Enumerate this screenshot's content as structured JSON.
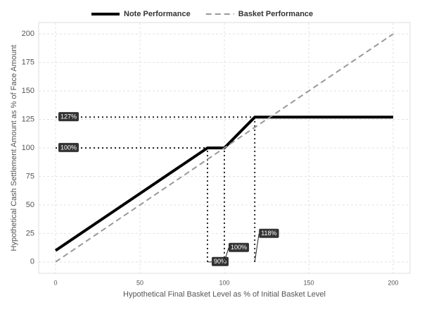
{
  "chart_data": {
    "type": "line",
    "xlabel": "Hypothetical Final Basket Level as % of Initial Basket Level",
    "ylabel": "Hypothetical Cash Settlement Amount as % of Face Amount",
    "xlim": [
      -10,
      210
    ],
    "ylim": [
      -10,
      210
    ],
    "xticks": [
      0,
      50,
      100,
      150,
      200
    ],
    "yticks": [
      0,
      25,
      50,
      75,
      100,
      125,
      150,
      175,
      200
    ],
    "grid": true,
    "legend": "top",
    "series": [
      {
        "name": "Note Performance",
        "color": "#000000",
        "style": "solid",
        "x": [
          0,
          90,
          100,
          118,
          200
        ],
        "values": [
          10,
          100,
          100,
          127,
          127
        ]
      },
      {
        "name": "Basket Performance",
        "color": "#999999",
        "style": "dashed",
        "x": [
          0,
          200
        ],
        "values": [
          0,
          200
        ]
      }
    ],
    "reference_lines": [
      {
        "axis": "y",
        "value": 127,
        "label": "127%"
      },
      {
        "axis": "y",
        "value": 100,
        "label": "100%"
      },
      {
        "axis": "x",
        "value": 90,
        "label": "90%"
      },
      {
        "axis": "x",
        "value": 100,
        "label": "100%"
      },
      {
        "axis": "x",
        "value": 118,
        "label": "118%"
      }
    ]
  }
}
